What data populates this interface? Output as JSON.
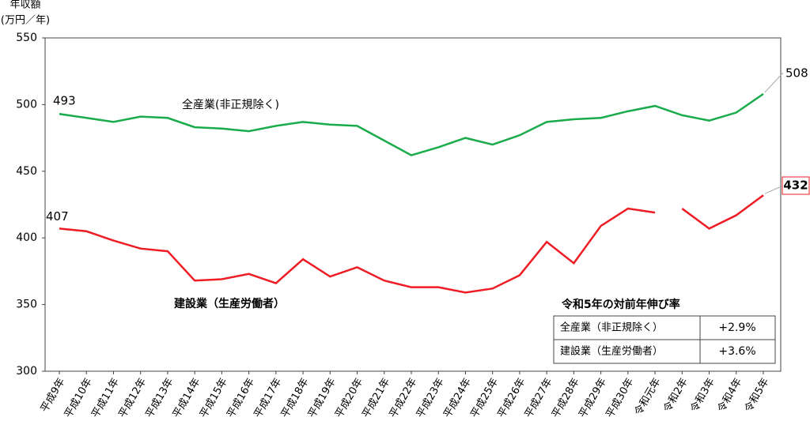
{
  "chart_data": {
    "type": "line",
    "y_title": [
      "年収額",
      "(万円／年)"
    ],
    "categories": [
      "平成9年",
      "平成10年",
      "平成11年",
      "平成12年",
      "平成13年",
      "平成14年",
      "平成15年",
      "平成16年",
      "平成17年",
      "平成18年",
      "平成19年",
      "平成20年",
      "平成21年",
      "平成22年",
      "平成23年",
      "平成24年",
      "平成25年",
      "平成26年",
      "平成27年",
      "平成28年",
      "平成29年",
      "平成30年",
      "令和元年",
      "令和2年",
      "令和3年",
      "令和4年",
      "令和5年"
    ],
    "series": [
      {
        "name": "全産業(非正規除く)",
        "color": "#1aab4b",
        "values": [
          493,
          490,
          487,
          491,
          490,
          483,
          482,
          480,
          484,
          487,
          485,
          484,
          473,
          462,
          468,
          475,
          470,
          477,
          487,
          489,
          490,
          495,
          499,
          492,
          488,
          494,
          508
        ]
      },
      {
        "name": "建設業（生産労働者）",
        "color": "#ee1c25",
        "breaks": [
          22
        ],
        "values": [
          407,
          405,
          398,
          392,
          390,
          368,
          369,
          373,
          366,
          384,
          371,
          378,
          368,
          363,
          363,
          359,
          362,
          372,
          397,
          381,
          409,
          422,
          419,
          422,
          407,
          417,
          432
        ]
      }
    ],
    "ylim": [
      300,
      550
    ],
    "yticks": [
      300,
      350,
      400,
      450,
      500,
      550
    ],
    "growth_table": {
      "title": "令和5年の対前年伸び率",
      "rows": [
        [
          "全産業（非正規除く）",
          "+2.9%"
        ],
        [
          "建設業（生産労働者）",
          "+3.6%"
        ]
      ]
    }
  }
}
